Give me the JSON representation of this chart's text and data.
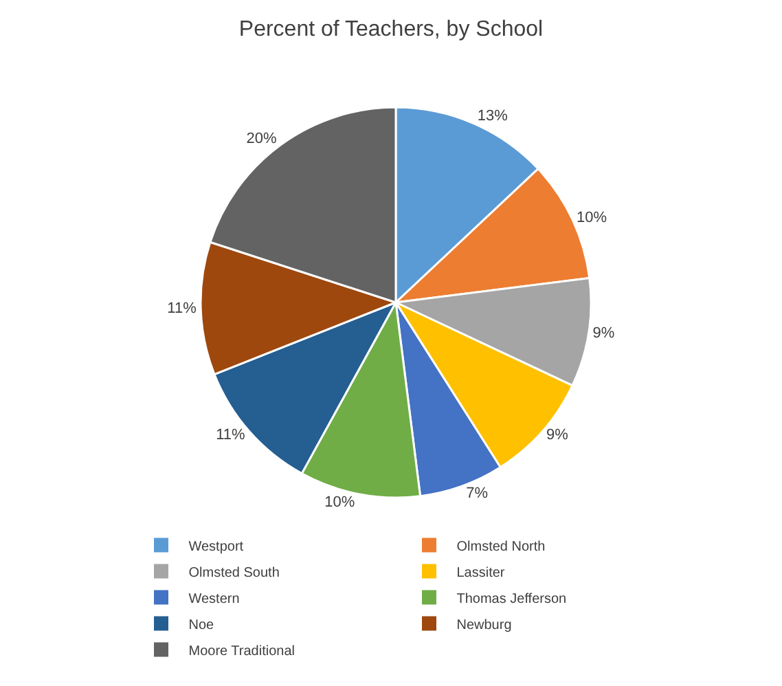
{
  "chart_data": {
    "type": "pie",
    "title": "Percent of Teachers, by School",
    "categories": [
      "Westport",
      "Olmsted North",
      "Olmsted South",
      "Lassiter",
      "Western",
      "Thomas Jefferson",
      "Noe",
      "Newburg",
      "Moore Traditional"
    ],
    "values": [
      13,
      10,
      9,
      9,
      7,
      10,
      11,
      11,
      20
    ],
    "value_labels": [
      "13%",
      "10%",
      "9%",
      "9%",
      "7%",
      "10%",
      "11%",
      "11%",
      "20%"
    ],
    "colors": [
      "#5b9bd5",
      "#ed7d31",
      "#a5a5a5",
      "#ffc000",
      "#4472c4",
      "#70ad47",
      "#255e91",
      "#9e480e",
      "#636363"
    ],
    "legend": "bottom"
  }
}
